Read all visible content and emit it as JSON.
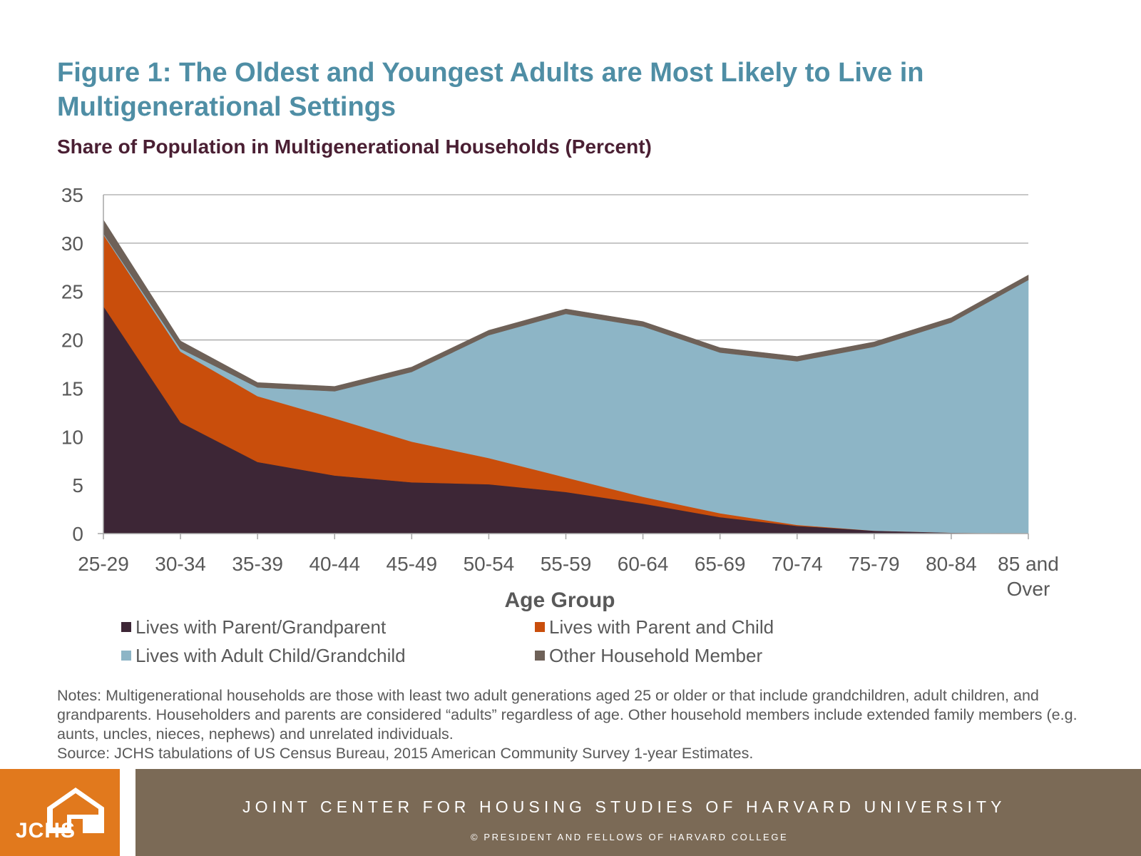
{
  "title": "Figure 1: The Oldest and Youngest Adults are Most Likely to Live in Multigenerational Settings",
  "subtitle": "Share of Population in Multigenerational Households (Percent)",
  "chart_data": {
    "type": "area",
    "stacked": true,
    "title": "Share of Population in Multigenerational Households (Percent)",
    "xlabel": "Age Group",
    "ylabel": "",
    "ylim": [
      0,
      35
    ],
    "yticks": [
      0,
      5,
      10,
      15,
      20,
      25,
      30,
      35
    ],
    "grid": true,
    "legend_position": "bottom",
    "categories": [
      "25-29",
      "30-34",
      "35-39",
      "40-44",
      "45-49",
      "50-54",
      "55-59",
      "60-64",
      "65-69",
      "70-74",
      "75-79",
      "80-84",
      "85 and Over"
    ],
    "series": [
      {
        "name": "Lives with Parent/Grandparent",
        "color": "#3d2636",
        "values": [
          23.5,
          11.5,
          7.4,
          6.0,
          5.3,
          5.1,
          4.3,
          3.1,
          1.7,
          0.8,
          0.3,
          0.1,
          0.0
        ]
      },
      {
        "name": "Lives with Parent and Child",
        "color": "#c94e0c",
        "values": [
          7.4,
          7.3,
          6.8,
          5.9,
          4.2,
          2.7,
          1.5,
          0.7,
          0.4,
          0.1,
          0.0,
          0.0,
          0.0
        ]
      },
      {
        "name": "Lives with Adult Child/Grandchild",
        "color": "#8db5c6",
        "values": [
          0.1,
          0.3,
          0.9,
          2.8,
          7.2,
          12.7,
          16.9,
          17.6,
          16.6,
          16.9,
          19.0,
          21.7,
          26.2
        ]
      },
      {
        "name": "Other Household Member",
        "color": "#6e6158",
        "values": [
          1.4,
          0.8,
          0.5,
          0.5,
          0.5,
          0.5,
          0.5,
          0.5,
          0.5,
          0.5,
          0.5,
          0.5,
          0.5
        ]
      }
    ]
  },
  "notes": {
    "line1": "Notes: Multigenerational households are those with least two adult generations aged 25 or older or that include grandchildren, adult children, and grandparents. Householders and parents are considered “adults” regardless of age. Other household members include extended family members (e.g. aunts, uncles, nieces, nephews) and unrelated individuals.",
    "line2": "Source: JCHS tabulations of US Census Bureau, 2015 American Community Survey 1-year Estimates."
  },
  "footer": {
    "logo_text": "JCHS",
    "organization": "JOINT CENTER FOR HOUSING STUDIES OF HARVARD UNIVERSITY",
    "copyright": "© PRESIDENT AND FELLOWS OF HARVARD COLLEGE",
    "logo_bg": "#e1791d",
    "bar_bg": "#7b6a56"
  }
}
